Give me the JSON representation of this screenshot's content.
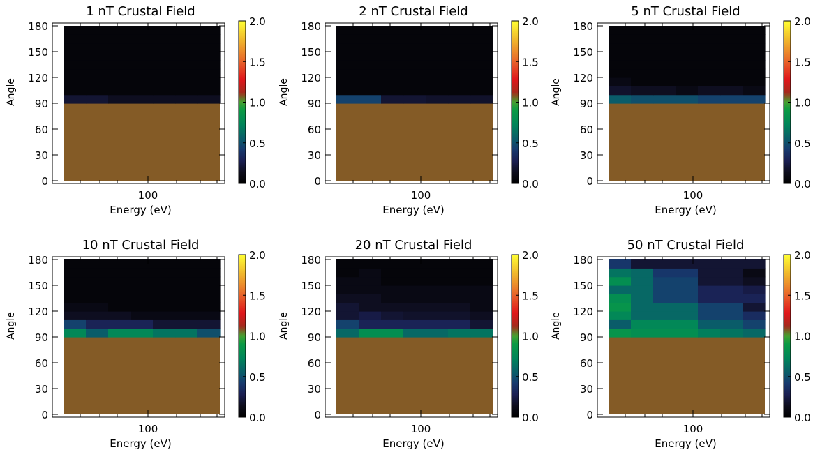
{
  "chart_data": [
    {
      "type": "heatmap",
      "title": "1 nT Crustal Field",
      "xlabel": "Energy (eV)",
      "ylabel": "Angle",
      "xscale": "log",
      "xticks": [
        "100"
      ],
      "yticks": [
        "0",
        "30",
        "60",
        "90",
        "120",
        "150",
        "180"
      ],
      "ylim": [
        0,
        180
      ],
      "colorbar": {
        "range": [
          0.0,
          2.0
        ],
        "ticks": [
          "0.0",
          "0.5",
          "1.0",
          "1.5",
          "2.0"
        ]
      },
      "angle_bins": [
        [
          90,
          100
        ],
        [
          100,
          110
        ],
        [
          110,
          120
        ],
        [
          120,
          130
        ],
        [
          130,
          140
        ],
        [
          140,
          150
        ],
        [
          150,
          160
        ],
        [
          160,
          170
        ],
        [
          170,
          180
        ]
      ],
      "values": [
        [
          0.2,
          0.2,
          0.15,
          0.15,
          0.15,
          0.15,
          0.15
        ],
        [
          0.05,
          0.05,
          0.05,
          0.05,
          0.05,
          0.05,
          0.05
        ],
        [
          0.05,
          0.05,
          0.05,
          0.05,
          0.05,
          0.05,
          0.05
        ],
        [
          0.05,
          0.05,
          0.05,
          0.05,
          0.05,
          0.05,
          0.05
        ],
        [
          0.05,
          0.05,
          0.05,
          0.05,
          0.05,
          0.05,
          0.05
        ],
        [
          0.05,
          0.05,
          0.05,
          0.05,
          0.05,
          0.05,
          0.05
        ],
        [
          0.05,
          0.05,
          0.05,
          0.05,
          0.05,
          0.05,
          0.05
        ],
        [
          0.05,
          0.05,
          0.05,
          0.05,
          0.05,
          0.05,
          0.05
        ],
        [
          0.05,
          0.05,
          0.05,
          0.05,
          0.05,
          0.05,
          0.05
        ]
      ],
      "below_90_color": "#845b26"
    },
    {
      "type": "heatmap",
      "title": "2 nT Crustal Field",
      "xlabel": "Energy (eV)",
      "ylabel": "Angle",
      "xscale": "log",
      "xticks": [
        "100"
      ],
      "yticks": [
        "0",
        "30",
        "60",
        "90",
        "120",
        "150",
        "180"
      ],
      "ylim": [
        0,
        180
      ],
      "colorbar": {
        "range": [
          0.0,
          2.0
        ],
        "ticks": [
          "0.0",
          "0.5",
          "1.0",
          "1.5",
          "2.0"
        ]
      },
      "angle_bins": [
        [
          90,
          100
        ],
        [
          100,
          110
        ],
        [
          110,
          120
        ],
        [
          120,
          130
        ],
        [
          130,
          140
        ],
        [
          140,
          150
        ],
        [
          150,
          160
        ],
        [
          160,
          170
        ],
        [
          170,
          180
        ]
      ],
      "values": [
        [
          0.45,
          0.45,
          0.2,
          0.2,
          0.18,
          0.18,
          0.18
        ],
        [
          0.05,
          0.05,
          0.05,
          0.05,
          0.05,
          0.05,
          0.05
        ],
        [
          0.05,
          0.05,
          0.05,
          0.05,
          0.05,
          0.05,
          0.05
        ],
        [
          0.05,
          0.05,
          0.05,
          0.05,
          0.05,
          0.05,
          0.05
        ],
        [
          0.05,
          0.05,
          0.05,
          0.05,
          0.05,
          0.05,
          0.05
        ],
        [
          0.05,
          0.05,
          0.05,
          0.05,
          0.05,
          0.05,
          0.05
        ],
        [
          0.05,
          0.05,
          0.05,
          0.05,
          0.05,
          0.05,
          0.05
        ],
        [
          0.05,
          0.05,
          0.05,
          0.05,
          0.05,
          0.05,
          0.05
        ],
        [
          0.05,
          0.05,
          0.05,
          0.05,
          0.05,
          0.05,
          0.05
        ]
      ],
      "below_90_color": "#845b26"
    },
    {
      "type": "heatmap",
      "title": "5 nT Crustal Field",
      "xlabel": "Energy (eV)",
      "ylabel": "Angle",
      "xscale": "log",
      "xticks": [
        "100"
      ],
      "yticks": [
        "0",
        "30",
        "60",
        "90",
        "120",
        "150",
        "180"
      ],
      "ylim": [
        0,
        180
      ],
      "colorbar": {
        "range": [
          0.0,
          2.0
        ],
        "ticks": [
          "0.0",
          "0.5",
          "1.0",
          "1.5",
          "2.0"
        ]
      },
      "angle_bins": [
        [
          90,
          100
        ],
        [
          100,
          110
        ],
        [
          110,
          120
        ],
        [
          120,
          130
        ],
        [
          130,
          140
        ],
        [
          140,
          150
        ],
        [
          150,
          160
        ],
        [
          160,
          170
        ],
        [
          170,
          180
        ]
      ],
      "values": [
        [
          0.55,
          0.5,
          0.5,
          0.5,
          0.45,
          0.45,
          0.45
        ],
        [
          0.18,
          0.15,
          0.15,
          0.1,
          0.15,
          0.15,
          0.1
        ],
        [
          0.1,
          0.05,
          0.05,
          0.05,
          0.05,
          0.05,
          0.05
        ],
        [
          0.05,
          0.05,
          0.05,
          0.05,
          0.05,
          0.05,
          0.05
        ],
        [
          0.05,
          0.05,
          0.05,
          0.05,
          0.05,
          0.05,
          0.05
        ],
        [
          0.05,
          0.05,
          0.05,
          0.05,
          0.05,
          0.05,
          0.05
        ],
        [
          0.05,
          0.05,
          0.05,
          0.05,
          0.05,
          0.05,
          0.05
        ],
        [
          0.05,
          0.05,
          0.05,
          0.05,
          0.05,
          0.05,
          0.05
        ],
        [
          0.05,
          0.05,
          0.05,
          0.05,
          0.05,
          0.05,
          0.05
        ]
      ],
      "below_90_color": "#845b26"
    },
    {
      "type": "heatmap",
      "title": "10 nT Crustal Field",
      "xlabel": "Energy (eV)",
      "ylabel": "Angle",
      "xscale": "log",
      "xticks": [
        "100"
      ],
      "yticks": [
        "0",
        "30",
        "60",
        "90",
        "120",
        "150",
        "180"
      ],
      "ylim": [
        0,
        180
      ],
      "colorbar": {
        "range": [
          0.0,
          2.0
        ],
        "ticks": [
          "0.0",
          "0.5",
          "1.0",
          "1.5",
          "2.0"
        ]
      },
      "angle_bins": [
        [
          90,
          100
        ],
        [
          100,
          110
        ],
        [
          110,
          120
        ],
        [
          120,
          130
        ],
        [
          130,
          140
        ],
        [
          140,
          150
        ],
        [
          150,
          160
        ],
        [
          160,
          170
        ],
        [
          170,
          180
        ]
      ],
      "values": [
        [
          0.75,
          0.55,
          0.75,
          0.75,
          0.65,
          0.65,
          0.5
        ],
        [
          0.45,
          0.3,
          0.3,
          0.3,
          0.2,
          0.2,
          0.2
        ],
        [
          0.15,
          0.15,
          0.15,
          0.1,
          0.1,
          0.1,
          0.1
        ],
        [
          0.1,
          0.1,
          0.05,
          0.05,
          0.05,
          0.05,
          0.05
        ],
        [
          0.05,
          0.05,
          0.05,
          0.05,
          0.05,
          0.05,
          0.05
        ],
        [
          0.05,
          0.05,
          0.05,
          0.05,
          0.05,
          0.05,
          0.05
        ],
        [
          0.05,
          0.05,
          0.05,
          0.05,
          0.05,
          0.05,
          0.05
        ],
        [
          0.05,
          0.05,
          0.05,
          0.05,
          0.05,
          0.05,
          0.05
        ],
        [
          0.05,
          0.05,
          0.05,
          0.05,
          0.05,
          0.05,
          0.05
        ]
      ],
      "below_90_color": "#845b26"
    },
    {
      "type": "heatmap",
      "title": "20 nT Crustal Field",
      "xlabel": "Energy (eV)",
      "ylabel": "Angle",
      "xscale": "log",
      "xticks": [
        "100"
      ],
      "yticks": [
        "0",
        "30",
        "60",
        "90",
        "120",
        "150",
        "180"
      ],
      "ylim": [
        0,
        180
      ],
      "colorbar": {
        "range": [
          0.0,
          2.0
        ],
        "ticks": [
          "0.0",
          "0.5",
          "1.0",
          "1.5",
          "2.0"
        ]
      },
      "angle_bins": [
        [
          90,
          100
        ],
        [
          100,
          110
        ],
        [
          110,
          120
        ],
        [
          120,
          130
        ],
        [
          130,
          140
        ],
        [
          140,
          150
        ],
        [
          150,
          160
        ],
        [
          160,
          170
        ],
        [
          170,
          180
        ]
      ],
      "values": [
        [
          0.6,
          0.8,
          0.8,
          0.6,
          0.6,
          0.65,
          0.65
        ],
        [
          0.45,
          0.3,
          0.3,
          0.3,
          0.3,
          0.3,
          0.2
        ],
        [
          0.2,
          0.25,
          0.2,
          0.18,
          0.18,
          0.18,
          0.15
        ],
        [
          0.2,
          0.15,
          0.15,
          0.15,
          0.15,
          0.15,
          0.1
        ],
        [
          0.15,
          0.15,
          0.1,
          0.1,
          0.1,
          0.1,
          0.1
        ],
        [
          0.1,
          0.1,
          0.1,
          0.1,
          0.1,
          0.1,
          0.1
        ],
        [
          0.1,
          0.1,
          0.05,
          0.05,
          0.05,
          0.05,
          0.05
        ],
        [
          0.05,
          0.1,
          0.05,
          0.05,
          0.05,
          0.05,
          0.05
        ],
        [
          0.05,
          0.05,
          0.05,
          0.05,
          0.05,
          0.05,
          0.05
        ]
      ],
      "below_90_color": "#845b26"
    },
    {
      "type": "heatmap",
      "title": "50 nT Crustal Field",
      "xlabel": "Energy (eV)",
      "ylabel": "Angle",
      "xscale": "log",
      "xticks": [
        "100"
      ],
      "yticks": [
        "0",
        "30",
        "60",
        "90",
        "120",
        "150",
        "180"
      ],
      "ylim": [
        0,
        180
      ],
      "colorbar": {
        "range": [
          0.0,
          2.0
        ],
        "ticks": [
          "0.0",
          "0.5",
          "1.0",
          "1.5",
          "2.0"
        ]
      },
      "angle_bins": [
        [
          90,
          100
        ],
        [
          100,
          110
        ],
        [
          110,
          120
        ],
        [
          120,
          130
        ],
        [
          130,
          140
        ],
        [
          140,
          150
        ],
        [
          150,
          160
        ],
        [
          160,
          170
        ],
        [
          170,
          180
        ]
      ],
      "values": [
        [
          0.85,
          0.8,
          0.8,
          0.8,
          0.7,
          0.65,
          0.6
        ],
        [
          0.55,
          0.75,
          0.75,
          0.75,
          0.55,
          0.55,
          0.45
        ],
        [
          0.75,
          0.6,
          0.6,
          0.6,
          0.45,
          0.45,
          0.35
        ],
        [
          0.85,
          0.6,
          0.6,
          0.6,
          0.45,
          0.45,
          0.2
        ],
        [
          0.8,
          0.6,
          0.45,
          0.45,
          0.3,
          0.3,
          0.3
        ],
        [
          0.6,
          0.6,
          0.45,
          0.45,
          0.3,
          0.3,
          0.25
        ],
        [
          0.8,
          0.6,
          0.45,
          0.45,
          0.2,
          0.2,
          0.15
        ],
        [
          0.65,
          0.6,
          0.4,
          0.4,
          0.2,
          0.2,
          0.1
        ],
        [
          0.4,
          0.2,
          0.2,
          0.2,
          0.2,
          0.2,
          0.2
        ]
      ],
      "below_90_color": "#845b26"
    }
  ],
  "colors": {
    "background": "#ffffff",
    "axis": "#000000",
    "below_90": "#845b26"
  }
}
